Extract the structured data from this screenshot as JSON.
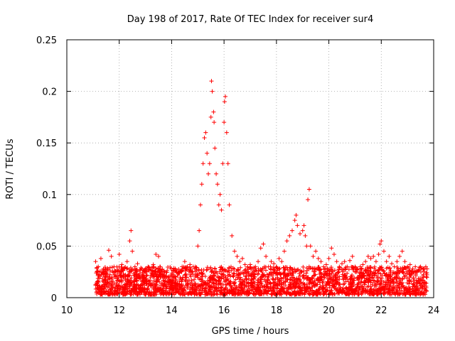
{
  "chart_data": {
    "type": "scatter",
    "title": "Day 198 of 2017, Rate Of TEC Index for receiver sur4",
    "xlabel": "GPS time / hours",
    "ylabel": "ROTI / TECUs",
    "xlim": [
      10,
      24
    ],
    "ylim": [
      0,
      0.25
    ],
    "xticks": [
      10,
      12,
      14,
      16,
      18,
      20,
      22,
      24
    ],
    "yticks": [
      0,
      0.05,
      0.1,
      0.15,
      0.2,
      0.25
    ],
    "xtick_labels": [
      "10",
      "12",
      "14",
      "16",
      "18",
      "20",
      "22",
      "24"
    ],
    "ytick_labels": [
      "0",
      "0.05",
      "0.1",
      "0.15",
      "0.2",
      "0.25"
    ],
    "grid": true,
    "marker": "+",
    "color": "#ff0000",
    "series": [
      {
        "x": [
          11.1,
          11.15,
          11.2,
          11.3,
          11.4,
          11.5,
          11.6,
          11.7,
          11.8,
          11.9,
          12.0,
          12.1,
          12.2,
          12.3,
          12.4,
          12.45,
          12.5,
          12.6,
          12.7,
          12.8,
          12.9,
          13.0,
          13.1,
          13.2,
          13.3,
          13.4,
          13.5,
          13.6,
          13.7,
          13.8,
          13.9,
          14.0,
          14.1,
          14.2,
          14.3,
          14.4,
          14.5,
          14.6,
          14.7,
          14.8,
          14.9,
          15.0,
          15.05,
          15.1,
          15.15,
          15.2,
          15.25,
          15.3,
          15.35,
          15.4,
          15.45,
          15.5,
          15.52,
          15.55,
          15.6,
          15.62,
          15.65,
          15.7,
          15.75,
          15.8,
          15.85,
          15.9,
          15.95,
          16.0,
          16.02,
          16.05,
          16.1,
          16.15,
          16.2,
          16.3,
          16.4,
          16.5,
          16.6,
          16.7,
          16.8,
          16.9,
          17.0,
          17.1,
          17.2,
          17.3,
          17.4,
          17.5,
          17.6,
          17.7,
          17.8,
          17.9,
          18.0,
          18.1,
          18.2,
          18.3,
          18.4,
          18.5,
          18.6,
          18.7,
          18.75,
          18.8,
          18.9,
          19.0,
          19.05,
          19.1,
          19.15,
          19.2,
          19.25,
          19.3,
          19.4,
          19.5,
          19.6,
          19.7,
          19.8,
          19.9,
          20.0,
          20.1,
          20.2,
          20.3,
          20.4,
          20.5,
          20.6,
          20.7,
          20.8,
          20.9,
          21.0,
          21.1,
          21.2,
          21.3,
          21.4,
          21.5,
          21.6,
          21.7,
          21.8,
          21.9,
          21.95,
          22.0,
          22.1,
          22.2,
          22.3,
          22.4,
          22.5,
          22.6,
          22.7,
          22.8,
          22.9,
          23.0,
          23.1,
          23.2,
          23.3,
          23.4,
          23.5,
          23.6,
          23.7,
          23.75
        ],
        "y": [
          0.035,
          0.025,
          0.03,
          0.038,
          0.028,
          0.022,
          0.046,
          0.04,
          0.03,
          0.025,
          0.042,
          0.032,
          0.028,
          0.035,
          0.055,
          0.065,
          0.045,
          0.03,
          0.033,
          0.027,
          0.022,
          0.025,
          0.03,
          0.028,
          0.032,
          0.042,
          0.04,
          0.025,
          0.022,
          0.02,
          0.018,
          0.022,
          0.02,
          0.025,
          0.024,
          0.03,
          0.035,
          0.03,
          0.032,
          0.025,
          0.03,
          0.05,
          0.065,
          0.09,
          0.11,
          0.13,
          0.155,
          0.16,
          0.14,
          0.12,
          0.13,
          0.175,
          0.21,
          0.2,
          0.18,
          0.17,
          0.145,
          0.12,
          0.11,
          0.09,
          0.1,
          0.085,
          0.13,
          0.17,
          0.19,
          0.195,
          0.16,
          0.13,
          0.09,
          0.06,
          0.045,
          0.04,
          0.035,
          0.038,
          0.032,
          0.03,
          0.032,
          0.028,
          0.03,
          0.035,
          0.048,
          0.052,
          0.04,
          0.03,
          0.035,
          0.033,
          0.03,
          0.038,
          0.035,
          0.045,
          0.055,
          0.06,
          0.065,
          0.075,
          0.08,
          0.07,
          0.062,
          0.065,
          0.07,
          0.06,
          0.05,
          0.095,
          0.105,
          0.05,
          0.04,
          0.045,
          0.038,
          0.035,
          0.03,
          0.032,
          0.038,
          0.048,
          0.042,
          0.035,
          0.03,
          0.033,
          0.035,
          0.03,
          0.036,
          0.04,
          0.03,
          0.028,
          0.03,
          0.032,
          0.035,
          0.04,
          0.038,
          0.04,
          0.035,
          0.042,
          0.052,
          0.055,
          0.045,
          0.035,
          0.04,
          0.033,
          0.03,
          0.035,
          0.04,
          0.045,
          0.035,
          0.03,
          0.032,
          0.028,
          0.03,
          0.026,
          0.03,
          0.028,
          0.03,
          0.028
        ]
      },
      {
        "x_range": [
          11.1,
          23.75
        ],
        "y_band": [
          0.003,
          0.03
        ],
        "note_type": "dense_baseline"
      }
    ]
  }
}
